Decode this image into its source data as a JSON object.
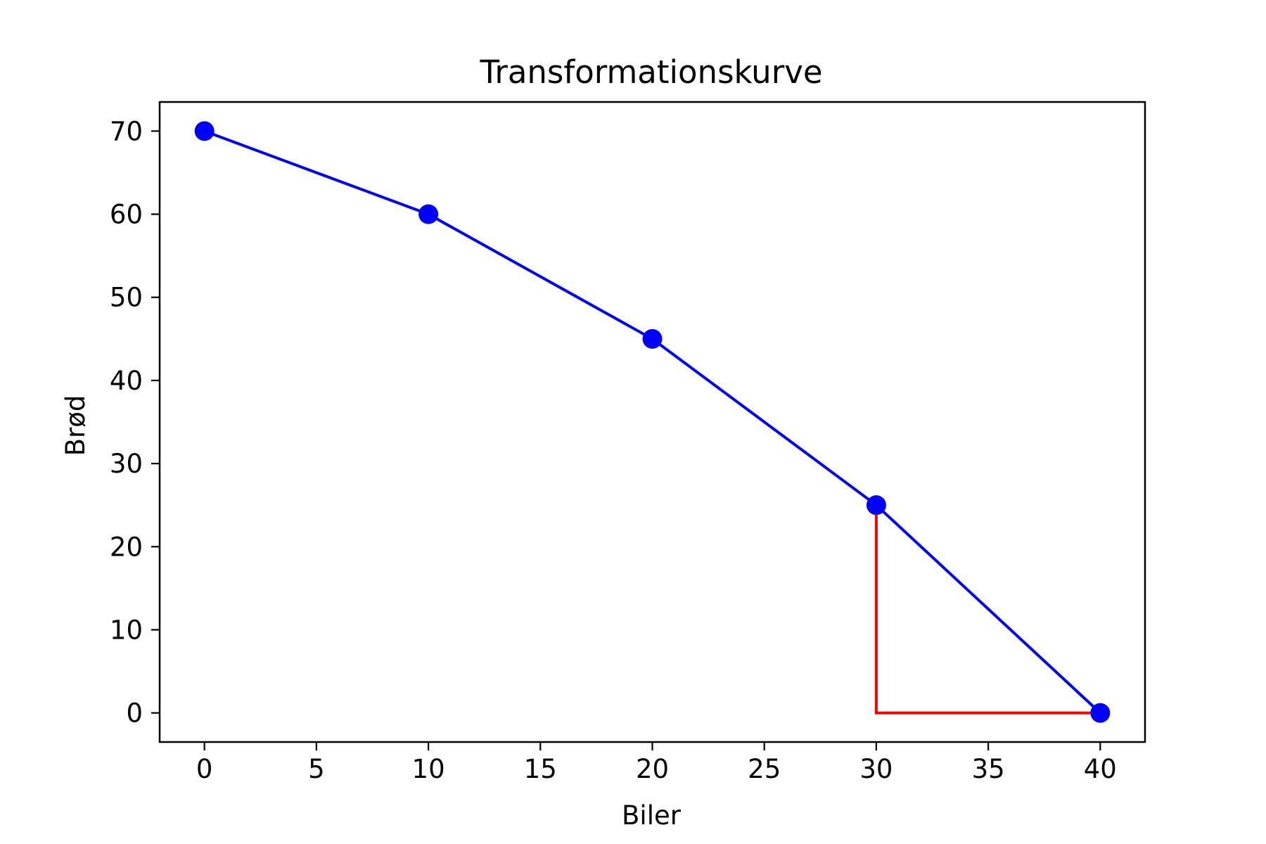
{
  "chart_data": {
    "type": "line",
    "title": "Transformationskurve",
    "xlabel": "Biler",
    "ylabel": "Brød",
    "xlim": [
      -2,
      42
    ],
    "ylim": [
      -3.5,
      73.5
    ],
    "xticks": [
      0,
      5,
      10,
      15,
      20,
      25,
      30,
      35,
      40
    ],
    "yticks": [
      0,
      10,
      20,
      30,
      40,
      50,
      60,
      70
    ],
    "grid": false,
    "series": [
      {
        "x": [
          0,
          10,
          20,
          30,
          40
        ],
        "y": [
          70,
          60,
          45,
          25,
          0
        ],
        "color": "#0000ff",
        "marker": "circle"
      }
    ],
    "annotations": [
      {
        "type": "polyline",
        "color": "#ff0000",
        "x": [
          30,
          30,
          40
        ],
        "y": [
          25,
          0,
          0
        ]
      }
    ]
  }
}
